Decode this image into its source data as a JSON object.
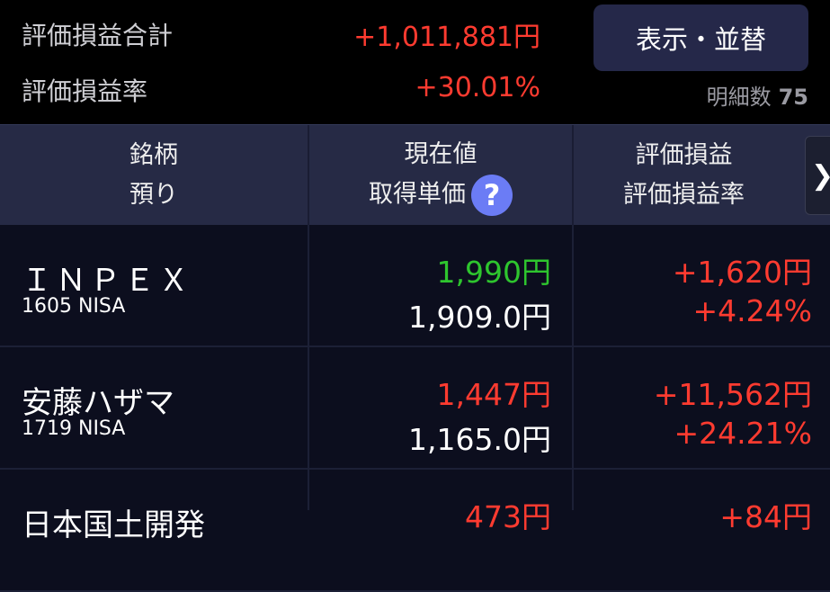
{
  "summary": {
    "total_pl_label": "評価損益合計",
    "total_pl_value": "+1,011,881円",
    "rate_label": "評価損益率",
    "rate_value": "+30.01%",
    "sort_button": "表示・並替",
    "count_label": "明細数",
    "count_value": "75"
  },
  "header": {
    "col1_line1": "銘柄",
    "col1_line2": "預り",
    "col2_line1": "現在値",
    "col2_line2": "取得単価",
    "help_icon": "?",
    "col3_line1": "評価損益",
    "col3_line2": "評価損益率",
    "more_icon": "❯"
  },
  "colors": {
    "gain": "#ff3b30",
    "up_price": "#2ec52e",
    "background": "#0c0e1e",
    "header": "#262a45",
    "button": "#252849"
  },
  "rows": [
    {
      "name": "ＩＮＰＥＸ",
      "code": "1605 NISA",
      "price": "1,990円",
      "price_color": "green",
      "cost": "1,909.0円",
      "pl": "+1,620円",
      "pl_rate": "+4.24%"
    },
    {
      "name": "安藤ハザマ",
      "code": "1719 NISA",
      "price": "1,447円",
      "price_color": "red",
      "cost": "1,165.0円",
      "pl": "+11,562円",
      "pl_rate": "+24.21%"
    },
    {
      "name": "日本国土開発",
      "price": "473円",
      "price_color": "red",
      "pl": "+84円"
    }
  ]
}
